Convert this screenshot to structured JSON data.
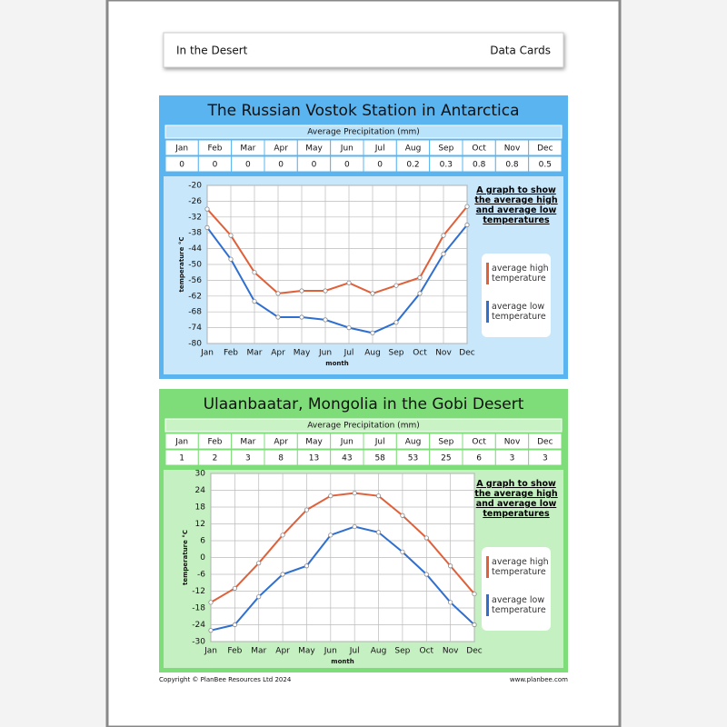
{
  "header": {
    "left": "In the Desert",
    "right": "Data Cards"
  },
  "cards": [
    {
      "title": "The Russian Vostok Station in Antarctica",
      "precip_title": "Average Precipitation (mm)",
      "months": [
        "Jan",
        "Feb",
        "Mar",
        "Apr",
        "May",
        "Jun",
        "Jul",
        "Aug",
        "Sep",
        "Oct",
        "Nov",
        "Dec"
      ],
      "precip": [
        0,
        0,
        0,
        0,
        0,
        0,
        0,
        0.2,
        0.3,
        0.8,
        0.8,
        0.5
      ]
    },
    {
      "title": "Ulaanbaatar, Mongolia in the Gobi Desert",
      "precip_title": "Average Precipitation (mm)",
      "months": [
        "Jan",
        "Feb",
        "Mar",
        "Apr",
        "May",
        "Jun",
        "Jul",
        "Aug",
        "Sep",
        "Oct",
        "Nov",
        "Dec"
      ],
      "precip": [
        1,
        2,
        3,
        8,
        13,
        43,
        58,
        53,
        25,
        6,
        3,
        3
      ]
    }
  ],
  "chart_data": [
    {
      "type": "line",
      "title": "A graph to show the average high and average low temperatures",
      "x_label": "month",
      "y_label": "temperature °C",
      "categories": [
        "Jan",
        "Feb",
        "Mar",
        "Apr",
        "May",
        "Jun",
        "Jul",
        "Aug",
        "Sep",
        "Oct",
        "Nov",
        "Dec"
      ],
      "series": [
        {
          "name": "average high temperature",
          "color": "#e0603a",
          "values": [
            -29,
            -39,
            -53,
            -61,
            -60,
            -60,
            -57,
            -61,
            -58,
            -55,
            -39,
            -28
          ]
        },
        {
          "name": "average low temperature",
          "color": "#2f6fd0",
          "values": [
            -36,
            -48,
            -64,
            -70,
            -70,
            -71,
            -74,
            -76,
            -72,
            -61,
            -46,
            -35
          ]
        }
      ],
      "ylim": [
        -80,
        -20
      ],
      "yticks": [
        -20,
        -26,
        -32,
        -38,
        -44,
        -50,
        -56,
        -62,
        -68,
        -74,
        -80
      ],
      "grid": true
    },
    {
      "type": "line",
      "title": "A graph to show the average high and average low temperatures",
      "x_label": "month",
      "y_label": "temperature °C",
      "categories": [
        "Jan",
        "Feb",
        "Mar",
        "Apr",
        "May",
        "Jun",
        "Jul",
        "Aug",
        "Sep",
        "Oct",
        "Nov",
        "Dec"
      ],
      "series": [
        {
          "name": "average high temperature",
          "color": "#e0603a",
          "values": [
            -16,
            -11,
            -2,
            8,
            17,
            22,
            23,
            22,
            15,
            7,
            -3,
            -13
          ]
        },
        {
          "name": "average low temperature",
          "color": "#2f6fd0",
          "values": [
            -26,
            -24,
            -14,
            -6,
            -3,
            8,
            11,
            9,
            2,
            -6,
            -16,
            -24
          ]
        }
      ],
      "ylim": [
        -30,
        30
      ],
      "yticks": [
        30,
        24,
        18,
        12,
        6,
        0,
        -6,
        -12,
        -18,
        -24,
        -30
      ],
      "grid": true
    }
  ],
  "footer": {
    "left": "Copyright © PlanBee Resources Ltd 2024",
    "right": "www.planbee.com"
  }
}
